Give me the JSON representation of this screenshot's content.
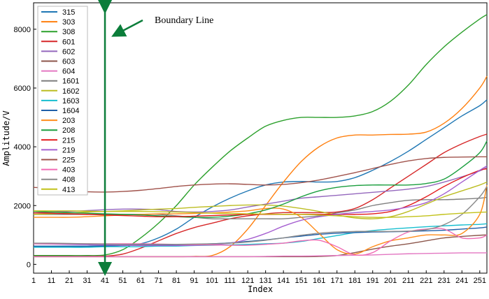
{
  "chart_data": {
    "type": "line",
    "title": "",
    "xlabel": "Index",
    "ylabel": "Amplitude/V",
    "xlim": [
      1,
      255
    ],
    "ylim": [
      -300,
      8900
    ],
    "x_ticks": [
      1,
      11,
      21,
      31,
      41,
      51,
      61,
      71,
      81,
      91,
      101,
      111,
      121,
      131,
      141,
      151,
      161,
      171,
      181,
      191,
      201,
      211,
      221,
      231,
      241,
      251
    ],
    "y_ticks": [
      0,
      2000,
      4000,
      6000,
      8000
    ],
    "grid": false,
    "legend_position": "top-left",
    "annotation": {
      "text": "Boundary Line",
      "x": 41,
      "color": "#0b7d3a"
    },
    "x": [
      1,
      11,
      21,
      31,
      41,
      51,
      61,
      71,
      81,
      91,
      101,
      111,
      121,
      131,
      141,
      151,
      161,
      171,
      181,
      191,
      201,
      211,
      221,
      231,
      241,
      251,
      255
    ],
    "series": [
      {
        "name": "315",
        "color": "#1f77b4",
        "values": [
          600,
          600,
          600,
          600,
          620,
          650,
          700,
          900,
          1200,
          1600,
          1950,
          2250,
          2500,
          2700,
          2800,
          2820,
          2800,
          2820,
          2950,
          3200,
          3500,
          3850,
          4250,
          4650,
          5050,
          5400,
          5600
        ]
      },
      {
        "name": "303",
        "color": "#ff7f0e",
        "values": [
          260,
          260,
          260,
          260,
          260,
          260,
          260,
          260,
          260,
          270,
          300,
          600,
          1200,
          2000,
          2800,
          3500,
          4000,
          4300,
          4400,
          4400,
          4420,
          4430,
          4500,
          4800,
          5300,
          6000,
          6400
        ]
      },
      {
        "name": "308",
        "color": "#2ca02c",
        "values": [
          300,
          300,
          300,
          300,
          320,
          500,
          900,
          1400,
          2000,
          2700,
          3300,
          3850,
          4300,
          4700,
          4900,
          5000,
          5000,
          5000,
          5050,
          5200,
          5550,
          6100,
          6800,
          7400,
          7900,
          8350,
          8500
        ]
      },
      {
        "name": "601",
        "color": "#d62728",
        "values": [
          270,
          270,
          270,
          270,
          280,
          350,
          550,
          800,
          1050,
          1250,
          1400,
          1550,
          1650,
          1720,
          1760,
          1760,
          1760,
          1780,
          1900,
          2200,
          2600,
          3000,
          3400,
          3800,
          4100,
          4350,
          4430
        ]
      },
      {
        "name": "602",
        "color": "#9467bd",
        "values": [
          1750,
          1780,
          1800,
          1830,
          1860,
          1880,
          1880,
          1860,
          1800,
          1780,
          1800,
          1850,
          1950,
          2050,
          2150,
          2250,
          2300,
          2350,
          2400,
          2450,
          2500,
          2560,
          2650,
          2800,
          2980,
          3180,
          3300
        ]
      },
      {
        "name": "603",
        "color": "#8c564b",
        "values": [
          260,
          260,
          260,
          260,
          260,
          260,
          260,
          260,
          260,
          260,
          260,
          260,
          260,
          260,
          260,
          260,
          270,
          300,
          400,
          520,
          620,
          700,
          800,
          900,
          950,
          990,
          1000
        ]
      },
      {
        "name": "604",
        "color": "#e377c2",
        "values": [
          260,
          260,
          260,
          260,
          260,
          260,
          260,
          260,
          260,
          260,
          260,
          260,
          260,
          270,
          280,
          280,
          290,
          300,
          310,
          320,
          340,
          360,
          370,
          380,
          390,
          390,
          390
        ]
      },
      {
        "name": "1601",
        "color": "#7f7f7f",
        "values": [
          1700,
          1700,
          1700,
          1700,
          1700,
          1700,
          1700,
          1700,
          1650,
          1600,
          1550,
          1550,
          1550,
          1550,
          1550,
          1600,
          1650,
          1750,
          1850,
          2000,
          2100,
          2180,
          2200,
          2200,
          2220,
          2250,
          2280
        ]
      },
      {
        "name": "1602",
        "color": "#bcbd22",
        "values": [
          1700,
          1720,
          1750,
          1780,
          1800,
          1820,
          1850,
          1880,
          1900,
          1940,
          1970,
          2000,
          2020,
          2020,
          1980,
          1900,
          1800,
          1680,
          1580,
          1550,
          1620,
          1800,
          2050,
          2300,
          2500,
          2700,
          2800
        ]
      },
      {
        "name": "1603",
        "color": "#17becf",
        "values": [
          580,
          580,
          580,
          580,
          600,
          600,
          600,
          620,
          620,
          640,
          650,
          660,
          680,
          700,
          720,
          780,
          880,
          980,
          1080,
          1150,
          1200,
          1240,
          1280,
          1310,
          1340,
          1360,
          1380
        ]
      },
      {
        "name": "1604",
        "color": "#1f5fa8",
        "values": [
          620,
          620,
          620,
          620,
          630,
          640,
          650,
          660,
          670,
          680,
          700,
          730,
          780,
          830,
          900,
          960,
          1020,
          1060,
          1080,
          1100,
          1110,
          1120,
          1140,
          1160,
          1200,
          1240,
          1270
        ]
      },
      {
        "name": "203",
        "color": "#ff8c1a",
        "values": [
          1600,
          1600,
          1600,
          1620,
          1650,
          1680,
          1700,
          1720,
          1720,
          1730,
          1750,
          1780,
          1820,
          1900,
          1880,
          1600,
          1050,
          500,
          350,
          600,
          800,
          900,
          1000,
          1000,
          1050,
          1700,
          2700
        ]
      },
      {
        "name": "208",
        "color": "#1a9e3e",
        "values": [
          1800,
          1780,
          1760,
          1740,
          1720,
          1700,
          1680,
          1650,
          1620,
          1600,
          1600,
          1640,
          1720,
          1850,
          2050,
          2300,
          2500,
          2620,
          2680,
          2700,
          2700,
          2700,
          2750,
          2900,
          3300,
          3800,
          4200
        ]
      },
      {
        "name": "215",
        "color": "#e31a1c",
        "values": [
          1750,
          1740,
          1720,
          1700,
          1680,
          1660,
          1640,
          1620,
          1620,
          1640,
          1660,
          1680,
          1700,
          1700,
          1700,
          1700,
          1700,
          1700,
          1700,
          1720,
          1800,
          2000,
          2300,
          2650,
          2950,
          3200,
          3250
        ]
      },
      {
        "name": "219",
        "color": "#a55fd0",
        "values": [
          700,
          690,
          680,
          670,
          660,
          650,
          640,
          640,
          640,
          650,
          670,
          720,
          850,
          1050,
          1300,
          1500,
          1620,
          1700,
          1760,
          1800,
          1850,
          1950,
          2100,
          2400,
          2800,
          3200,
          3350
        ]
      },
      {
        "name": "225",
        "color": "#a0524b",
        "values": [
          2620,
          2580,
          2520,
          2470,
          2460,
          2480,
          2520,
          2580,
          2650,
          2700,
          2730,
          2740,
          2720,
          2700,
          2720,
          2780,
          2870,
          2990,
          3120,
          3260,
          3400,
          3520,
          3600,
          3640,
          3650,
          3660,
          3660
        ]
      },
      {
        "name": "403",
        "color": "#f06bb4",
        "values": [
          700,
          700,
          700,
          700,
          700,
          700,
          700,
          690,
          680,
          670,
          660,
          650,
          650,
          680,
          720,
          800,
          820,
          600,
          320,
          400,
          800,
          1100,
          1200,
          1200,
          900,
          900,
          1000
        ]
      },
      {
        "name": "408",
        "color": "#8a8a8a",
        "values": [
          720,
          720,
          710,
          700,
          690,
          680,
          680,
          680,
          680,
          690,
          700,
          720,
          760,
          820,
          900,
          990,
          1060,
          1100,
          1120,
          1120,
          1120,
          1130,
          1180,
          1350,
          1700,
          2300,
          2650
        ]
      },
      {
        "name": "413",
        "color": "#c2c21a",
        "values": [
          1820,
          1820,
          1820,
          1810,
          1800,
          1800,
          1800,
          1790,
          1780,
          1760,
          1740,
          1730,
          1720,
          1710,
          1700,
          1700,
          1680,
          1650,
          1620,
          1600,
          1600,
          1620,
          1650,
          1700,
          1740,
          1770,
          1780
        ]
      }
    ]
  }
}
